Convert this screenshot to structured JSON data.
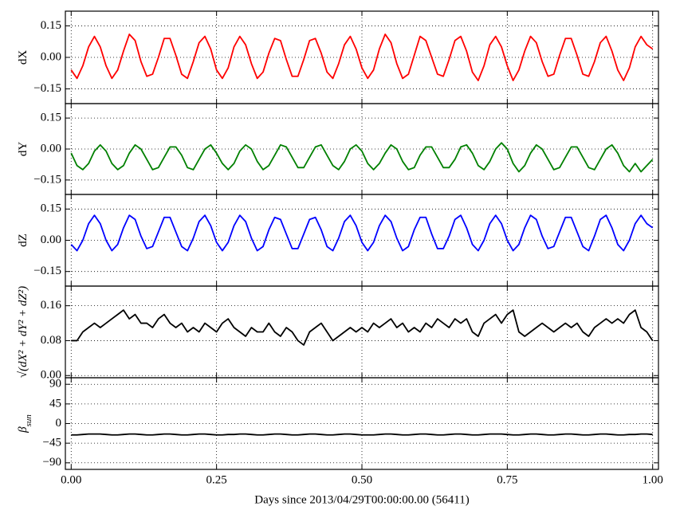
{
  "chart_data": {
    "type": "line",
    "xlabel": "Days since 2013/04/29T00:00:00.00 (56411)",
    "xlim": [
      -0.01,
      1.01
    ],
    "xticks": [
      {
        "value": 0,
        "label": "0.00"
      },
      0.25,
      {
        "value": 0.5,
        "label": "0.50"
      },
      {
        "value": 0.75,
        "label": "0.75"
      },
      {
        "value": 1,
        "label": "1.00"
      }
    ],
    "grid": true,
    "x": [
      0,
      0.01,
      0.02,
      0.03,
      0.04,
      0.05,
      0.06,
      0.07,
      0.08,
      0.09,
      0.1,
      0.11,
      0.12,
      0.13,
      0.14,
      0.15,
      0.16,
      0.17,
      0.18,
      0.19,
      0.2,
      0.21,
      0.22,
      0.23,
      0.24,
      0.25,
      0.26,
      0.27,
      0.28,
      0.29,
      0.3,
      0.31,
      0.32,
      0.33,
      0.34,
      0.35,
      0.36,
      0.37,
      0.38,
      0.39,
      0.4,
      0.41,
      0.42,
      0.43,
      0.44,
      0.45,
      0.46,
      0.47,
      0.48,
      0.49,
      0.5,
      0.51,
      0.52,
      0.53,
      0.54,
      0.55,
      0.56,
      0.57,
      0.58,
      0.59,
      0.6,
      0.61,
      0.62,
      0.63,
      0.64,
      0.65,
      0.66,
      0.67,
      0.68,
      0.69,
      0.7,
      0.71,
      0.72,
      0.73,
      0.74,
      0.75,
      0.76,
      0.77,
      0.78,
      0.79,
      0.8,
      0.81,
      0.82,
      0.83,
      0.84,
      0.85,
      0.86,
      0.87,
      0.88,
      0.89,
      0.9,
      0.91,
      0.92,
      0.93,
      0.94,
      0.95,
      0.96,
      0.97,
      0.98,
      0.99,
      1
    ],
    "panels": [
      {
        "ylabel": "dX",
        "ylim": [
          -0.22,
          0.22
        ],
        "yticks": [
          {
            "value": -0.15,
            "label": "−0.15"
          },
          {
            "value": 0,
            "label": "0.00"
          },
          0.15
        ],
        "series": [
          {
            "color": "#ff0000",
            "values": [
              -0.06,
              -0.1,
              -0.04,
              0.05,
              0.1,
              0.05,
              -0.04,
              -0.1,
              -0.06,
              0.03,
              0.11,
              0.08,
              -0.02,
              -0.09,
              -0.08,
              0.0,
              0.09,
              0.09,
              0.01,
              -0.08,
              -0.1,
              -0.02,
              0.07,
              0.1,
              0.04,
              -0.06,
              -0.1,
              -0.05,
              0.05,
              0.1,
              0.06,
              -0.03,
              -0.1,
              -0.07,
              0.02,
              0.09,
              0.08,
              -0.01,
              -0.09,
              -0.09,
              -0.01,
              0.08,
              0.09,
              0.02,
              -0.07,
              -0.1,
              -0.03,
              0.06,
              0.1,
              0.04,
              -0.05,
              -0.1,
              -0.06,
              0.04,
              0.11,
              0.07,
              -0.03,
              -0.1,
              -0.08,
              0.01,
              0.1,
              0.08,
              0.0,
              -0.08,
              -0.09,
              -0.01,
              0.08,
              0.1,
              0.03,
              -0.07,
              -0.11,
              -0.04,
              0.06,
              0.1,
              0.05,
              -0.04,
              -0.11,
              -0.06,
              0.03,
              0.1,
              0.07,
              -0.02,
              -0.09,
              -0.08,
              0.01,
              0.09,
              0.09,
              0.01,
              -0.08,
              -0.09,
              -0.02,
              0.07,
              0.1,
              0.03,
              -0.06,
              -0.11,
              -0.05,
              0.05,
              0.1,
              0.06,
              0.04
            ]
          }
        ]
      },
      {
        "ylabel": "dY",
        "ylim": [
          -0.22,
          0.22
        ],
        "yticks": [
          {
            "value": -0.15,
            "label": "−0.15"
          },
          {
            "value": 0,
            "label": "0.00"
          },
          0.15
        ],
        "series": [
          {
            "color": "#008000",
            "values": [
              -0.02,
              -0.08,
              -0.1,
              -0.07,
              -0.01,
              0.02,
              -0.01,
              -0.07,
              -0.1,
              -0.08,
              -0.02,
              0.02,
              0.0,
              -0.05,
              -0.1,
              -0.09,
              -0.04,
              0.01,
              0.01,
              -0.03,
              -0.09,
              -0.1,
              -0.05,
              0.0,
              0.02,
              -0.02,
              -0.07,
              -0.1,
              -0.07,
              -0.01,
              0.02,
              0.0,
              -0.06,
              -0.1,
              -0.08,
              -0.03,
              0.02,
              0.01,
              -0.04,
              -0.09,
              -0.09,
              -0.04,
              0.01,
              0.02,
              -0.03,
              -0.08,
              -0.1,
              -0.06,
              0.0,
              0.02,
              -0.01,
              -0.07,
              -0.1,
              -0.07,
              -0.02,
              0.02,
              0.0,
              -0.06,
              -0.1,
              -0.09,
              -0.03,
              0.01,
              0.01,
              -0.04,
              -0.09,
              -0.09,
              -0.05,
              0.01,
              0.02,
              -0.02,
              -0.08,
              -0.1,
              -0.06,
              0.0,
              0.03,
              0.0,
              -0.07,
              -0.11,
              -0.08,
              -0.02,
              0.02,
              0.0,
              -0.05,
              -0.1,
              -0.09,
              -0.04,
              0.01,
              0.01,
              -0.04,
              -0.09,
              -0.1,
              -0.05,
              0.0,
              0.02,
              -0.02,
              -0.08,
              -0.11,
              -0.07,
              -0.11,
              -0.08,
              -0.05
            ]
          }
        ]
      },
      {
        "ylabel": "dZ",
        "ylim": [
          -0.22,
          0.22
        ],
        "yticks": [
          {
            "value": -0.15,
            "label": "−0.15"
          },
          {
            "value": 0,
            "label": "0.00"
          },
          0.15
        ],
        "series": [
          {
            "color": "#0000ff",
            "values": [
              -0.02,
              -0.05,
              0.0,
              0.08,
              0.12,
              0.08,
              0.0,
              -0.05,
              -0.02,
              0.06,
              0.12,
              0.1,
              0.02,
              -0.04,
              -0.03,
              0.04,
              0.11,
              0.11,
              0.04,
              -0.03,
              -0.05,
              0.01,
              0.09,
              0.12,
              0.07,
              -0.01,
              -0.05,
              -0.01,
              0.07,
              0.12,
              0.09,
              0.01,
              -0.05,
              -0.03,
              0.05,
              0.11,
              0.1,
              0.03,
              -0.04,
              -0.04,
              0.03,
              0.1,
              0.11,
              0.05,
              -0.03,
              -0.05,
              0.01,
              0.09,
              0.12,
              0.07,
              -0.01,
              -0.05,
              -0.01,
              0.07,
              0.12,
              0.09,
              0.01,
              -0.05,
              -0.03,
              0.05,
              0.11,
              0.11,
              0.03,
              -0.04,
              -0.04,
              0.02,
              0.1,
              0.12,
              0.06,
              -0.02,
              -0.05,
              0.0,
              0.08,
              0.12,
              0.08,
              0.0,
              -0.05,
              -0.02,
              0.06,
              0.12,
              0.1,
              0.02,
              -0.04,
              -0.03,
              0.04,
              0.11,
              0.11,
              0.04,
              -0.03,
              -0.05,
              0.02,
              0.1,
              0.12,
              0.06,
              -0.02,
              -0.05,
              0.0,
              0.08,
              0.12,
              0.08,
              0.06
            ]
          }
        ]
      },
      {
        "ylabel": "√(dX² + dY² + dZ²)",
        "ylim": [
          -0.005,
          0.205
        ],
        "yticks": [
          {
            "value": 0,
            "label": "0.00"
          },
          0.08,
          0.16
        ],
        "series": [
          {
            "color": "#000000",
            "values": [
              0.08,
              0.08,
              0.1,
              0.11,
              0.12,
              0.11,
              0.12,
              0.13,
              0.14,
              0.15,
              0.13,
              0.14,
              0.12,
              0.12,
              0.11,
              0.13,
              0.14,
              0.12,
              0.11,
              0.12,
              0.1,
              0.11,
              0.1,
              0.12,
              0.11,
              0.1,
              0.12,
              0.13,
              0.11,
              0.1,
              0.09,
              0.11,
              0.1,
              0.1,
              0.12,
              0.1,
              0.09,
              0.11,
              0.1,
              0.08,
              0.07,
              0.1,
              0.11,
              0.12,
              0.1,
              0.08,
              0.09,
              0.1,
              0.11,
              0.1,
              0.11,
              0.1,
              0.12,
              0.11,
              0.12,
              0.13,
              0.11,
              0.12,
              0.1,
              0.11,
              0.1,
              0.12,
              0.11,
              0.13,
              0.12,
              0.11,
              0.13,
              0.12,
              0.13,
              0.1,
              0.09,
              0.12,
              0.13,
              0.14,
              0.12,
              0.14,
              0.15,
              0.1,
              0.09,
              0.1,
              0.11,
              0.12,
              0.11,
              0.1,
              0.11,
              0.12,
              0.11,
              0.12,
              0.1,
              0.09,
              0.11,
              0.12,
              0.13,
              0.12,
              0.13,
              0.12,
              0.14,
              0.15,
              0.11,
              0.1,
              0.08
            ]
          }
        ]
      },
      {
        "ylabel": "β",
        "ylabel_sub": "sun",
        "ylim": [
          -105,
          105
        ],
        "yticks": [
          {
            "value": -90,
            "label": "−90"
          },
          {
            "value": -45,
            "label": "−45"
          },
          0,
          45,
          90
        ],
        "series": [
          {
            "color": "#000000",
            "values": [
              -26,
              -26,
              -25,
              -24,
              -24,
              -24,
              -25,
              -26,
              -26,
              -25,
              -24,
              -24,
              -25,
              -26,
              -26,
              -25,
              -24,
              -24,
              -25,
              -26,
              -26,
              -25,
              -24,
              -24,
              -25,
              -26,
              -26,
              -25,
              -25,
              -24,
              -24,
              -25,
              -26,
              -26,
              -25,
              -24,
              -24,
              -25,
              -26,
              -26,
              -25,
              -24,
              -24,
              -25,
              -26,
              -26,
              -25,
              -24,
              -24,
              -25,
              -26,
              -26,
              -26,
              -25,
              -24,
              -24,
              -25,
              -26,
              -26,
              -25,
              -24,
              -24,
              -25,
              -26,
              -26,
              -25,
              -24,
              -24,
              -25,
              -26,
              -26,
              -25,
              -24,
              -24,
              -24,
              -25,
              -26,
              -26,
              -25,
              -24,
              -24,
              -25,
              -26,
              -26,
              -25,
              -24,
              -24,
              -25,
              -26,
              -26,
              -25,
              -24,
              -24,
              -25,
              -26,
              -26,
              -25,
              -25,
              -24,
              -24,
              -25
            ]
          }
        ]
      }
    ]
  }
}
